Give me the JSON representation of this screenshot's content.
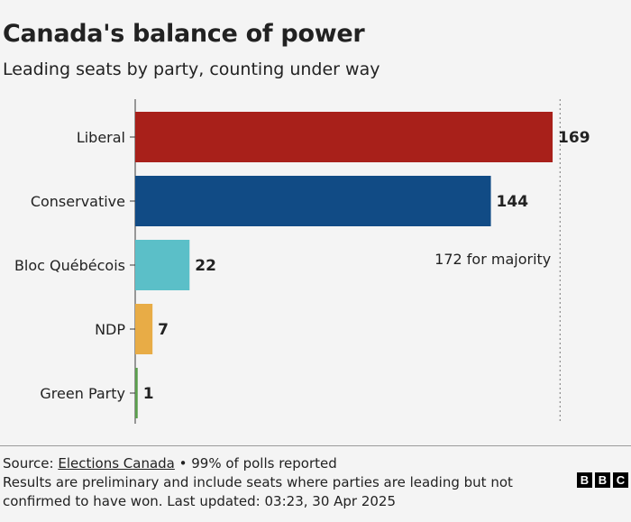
{
  "header": {
    "title": "Canada's balance of power",
    "subtitle": "Leading seats by party, counting under way"
  },
  "chart_data": {
    "type": "bar",
    "orientation": "horizontal",
    "title": "Canada's balance of power",
    "subtitle": "Leading seats by party, counting under way",
    "categories": [
      "Liberal",
      "Conservative",
      "Bloc Québécois",
      "NDP",
      "Green Party"
    ],
    "values": [
      169,
      144,
      22,
      7,
      1
    ],
    "colors": [
      "#a8201a",
      "#114b85",
      "#5bbfc8",
      "#e8ac46",
      "#5b9e4d"
    ],
    "xlim": [
      0,
      172
    ],
    "grid": false,
    "reference_line": {
      "value": 172,
      "label": "172 for majority",
      "style": "dotted"
    }
  },
  "footer": {
    "source_prefix": "Source: ",
    "source_link": "Elections Canada",
    "source_suffix": " • 99% of polls reported",
    "note": "Results are preliminary and include seats where parties are leading but not confirmed to have won. Last updated: 03:23, 30 Apr 2025",
    "logo_letters": [
      "B",
      "B",
      "C"
    ]
  }
}
